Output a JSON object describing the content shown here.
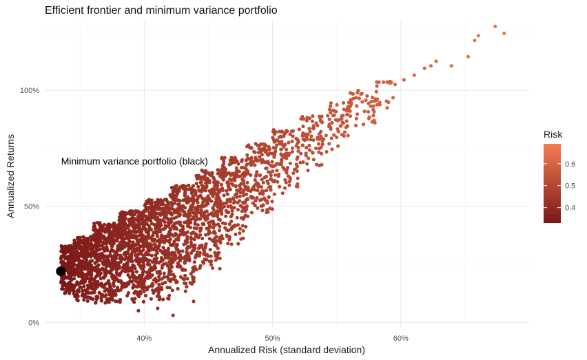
{
  "chart_data": {
    "type": "scatter",
    "title": "Efficient frontier and minimum variance portfolio",
    "xlabel": "Annualized Risk (standard deviation)",
    "ylabel": "Annualized Returns",
    "xlim": [
      0.3225,
      0.7
    ],
    "ylim": [
      -0.02,
      1.3
    ],
    "x_ticks": [
      0.4,
      0.5,
      0.6
    ],
    "x_tick_labels": [
      "40%",
      "50%",
      "60%"
    ],
    "y_ticks": [
      0,
      0.5,
      1.0
    ],
    "y_tick_labels": [
      "0%",
      "50%",
      "100%"
    ],
    "grid": true,
    "color_scale": {
      "title": "Risk",
      "domain": [
        0.33,
        0.69
      ],
      "ticks": [
        0.4,
        0.5,
        0.6
      ],
      "tick_labels": [
        "0.4",
        "0.5",
        "0.6"
      ],
      "low_color": "#7a1717",
      "high_color": "#f47d53"
    },
    "annotation": {
      "text": "Minimum variance portfolio (black)",
      "x": 0.3925,
      "y": 0.695
    },
    "min_variance_point": {
      "x": 0.335,
      "y": 0.22,
      "color": "#000000"
    },
    "outlier_points": [
      {
        "x": 0.6735,
        "y": 1.275
      },
      {
        "x": 0.6605,
        "y": 1.235
      },
      {
        "x": 0.6805,
        "y": 1.245
      },
      {
        "x": 0.6575,
        "y": 1.215
      },
      {
        "x": 0.6525,
        "y": 1.145
      },
      {
        "x": 0.6395,
        "y": 1.105
      },
      {
        "x": 0.6275,
        "y": 1.125
      },
      {
        "x": 0.6235,
        "y": 1.105
      },
      {
        "x": 0.6185,
        "y": 1.095
      },
      {
        "x": 0.6105,
        "y": 1.065
      },
      {
        "x": 0.6025,
        "y": 1.045
      },
      {
        "x": 0.5955,
        "y": 1.025
      },
      {
        "x": 0.5865,
        "y": 1.035
      },
      {
        "x": 0.4225,
        "y": 0.03
      },
      {
        "x": 0.4105,
        "y": 0.06
      },
      {
        "x": 0.4385,
        "y": 0.09
      },
      {
        "x": 0.3955,
        "y": 0.05
      }
    ],
    "cloud_bands": [
      {
        "x_start": 0.335,
        "x_end": 0.345,
        "y_low": 0.12,
        "y_high": 0.33
      },
      {
        "x_start": 0.345,
        "x_end": 0.36,
        "y_low": 0.09,
        "y_high": 0.37
      },
      {
        "x_start": 0.36,
        "x_end": 0.38,
        "y_low": 0.08,
        "y_high": 0.43
      },
      {
        "x_start": 0.38,
        "x_end": 0.4,
        "y_low": 0.08,
        "y_high": 0.48
      },
      {
        "x_start": 0.4,
        "x_end": 0.42,
        "y_low": 0.09,
        "y_high": 0.53
      },
      {
        "x_start": 0.42,
        "x_end": 0.44,
        "y_low": 0.13,
        "y_high": 0.59
      },
      {
        "x_start": 0.44,
        "x_end": 0.46,
        "y_low": 0.22,
        "y_high": 0.66
      },
      {
        "x_start": 0.46,
        "x_end": 0.48,
        "y_low": 0.33,
        "y_high": 0.71
      },
      {
        "x_start": 0.48,
        "x_end": 0.5,
        "y_low": 0.45,
        "y_high": 0.77
      },
      {
        "x_start": 0.5,
        "x_end": 0.52,
        "y_low": 0.55,
        "y_high": 0.83
      },
      {
        "x_start": 0.52,
        "x_end": 0.54,
        "y_low": 0.64,
        "y_high": 0.89
      },
      {
        "x_start": 0.54,
        "x_end": 0.56,
        "y_low": 0.73,
        "y_high": 0.95
      },
      {
        "x_start": 0.56,
        "x_end": 0.58,
        "y_low": 0.84,
        "y_high": 1.0
      },
      {
        "x_start": 0.58,
        "x_end": 0.595,
        "y_low": 0.92,
        "y_high": 1.04
      }
    ],
    "cloud_density": [
      220,
      300,
      420,
      420,
      380,
      330,
      270,
      200,
      150,
      110,
      80,
      55,
      40,
      20
    ]
  }
}
